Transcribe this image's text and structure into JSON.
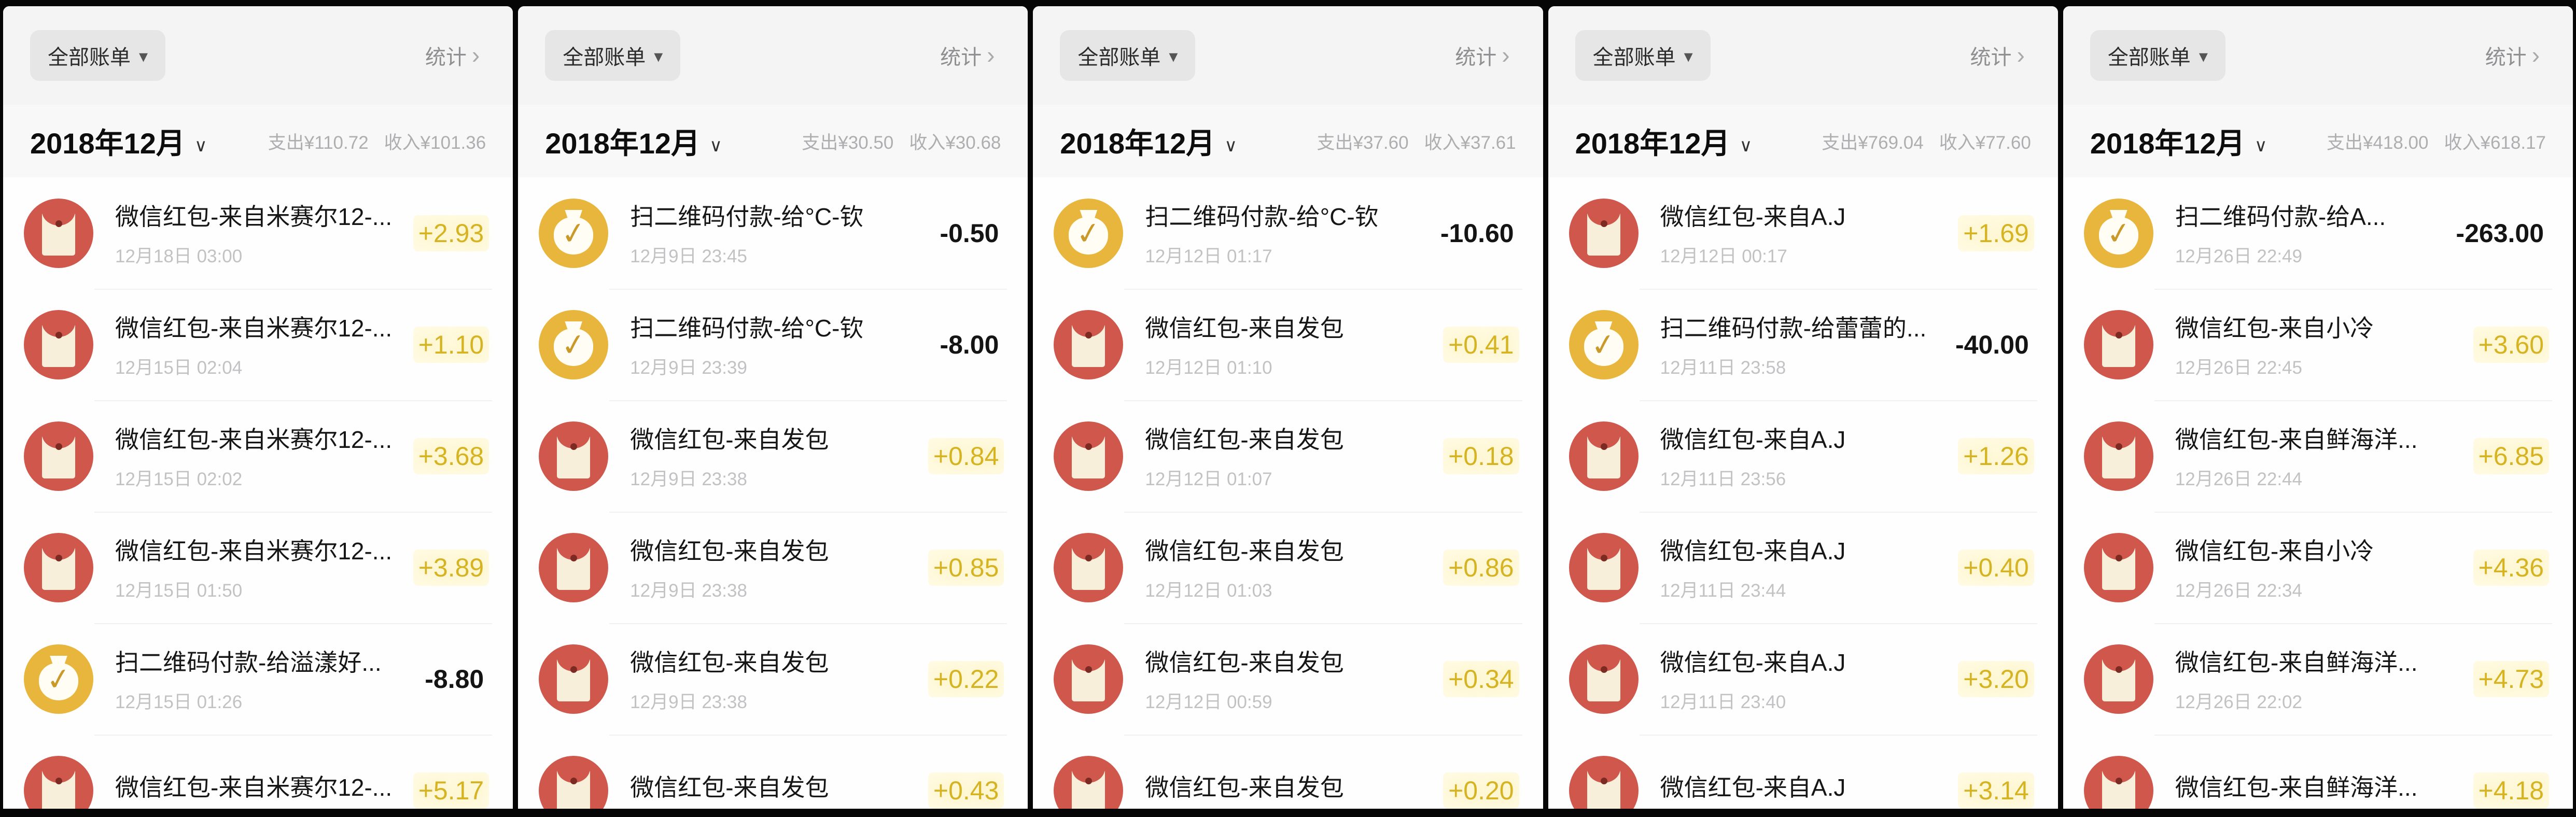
{
  "colors": {
    "red_packet_icon": "#d0574c",
    "money_bag_icon": "#e9b63d",
    "amount_positive": "#d5b322",
    "amount_negative": "#141414"
  },
  "panels": [
    {
      "filter_label": "全部账单",
      "stats_label": "统计",
      "month": "2018年12月",
      "expense": "支出¥110.72",
      "income": "收入¥101.36",
      "transactions": [
        {
          "icon": "red-packet-icon",
          "title": "微信红包-来自米赛尔12-...",
          "date": "12月18日 03:00",
          "amount": "+2.93"
        },
        {
          "icon": "red-packet-icon",
          "title": "微信红包-来自米赛尔12-...",
          "date": "12月15日 02:04",
          "amount": "+1.10"
        },
        {
          "icon": "red-packet-icon",
          "title": "微信红包-来自米赛尔12-...",
          "date": "12月15日 02:02",
          "amount": "+3.68"
        },
        {
          "icon": "red-packet-icon",
          "title": "微信红包-来自米赛尔12-...",
          "date": "12月15日 01:50",
          "amount": "+3.89"
        },
        {
          "icon": "money-bag-icon",
          "title": "扫二维码付款-给溢漾好...",
          "date": "12月15日 01:26",
          "amount": "-8.80"
        },
        {
          "icon": "red-packet-icon",
          "title": "微信红包-来自米赛尔12-...",
          "date": "",
          "amount": "+5.17"
        }
      ]
    },
    {
      "filter_label": "全部账单",
      "stats_label": "统计",
      "month": "2018年12月",
      "expense": "支出¥30.50",
      "income": "收入¥30.68",
      "transactions": [
        {
          "icon": "money-bag-icon",
          "title": "扫二维码付款-给°C-钦",
          "date": "12月9日 23:45",
          "amount": "-0.50"
        },
        {
          "icon": "money-bag-icon",
          "title": "扫二维码付款-给°C-钦",
          "date": "12月9日 23:39",
          "amount": "-8.00"
        },
        {
          "icon": "red-packet-icon",
          "title": "微信红包-来自发包",
          "date": "12月9日 23:38",
          "amount": "+0.84"
        },
        {
          "icon": "red-packet-icon",
          "title": "微信红包-来自发包",
          "date": "12月9日 23:38",
          "amount": "+0.85"
        },
        {
          "icon": "red-packet-icon",
          "title": "微信红包-来自发包",
          "date": "12月9日 23:38",
          "amount": "+0.22"
        },
        {
          "icon": "red-packet-icon",
          "title": "微信红包-来自发包",
          "date": "",
          "amount": "+0.43"
        }
      ]
    },
    {
      "filter_label": "全部账单",
      "stats_label": "统计",
      "month": "2018年12月",
      "expense": "支出¥37.60",
      "income": "收入¥37.61",
      "transactions": [
        {
          "icon": "money-bag-icon",
          "title": "扫二维码付款-给°C-钦",
          "date": "12月12日 01:17",
          "amount": "-10.60"
        },
        {
          "icon": "red-packet-icon",
          "title": "微信红包-来自发包",
          "date": "12月12日 01:10",
          "amount": "+0.41"
        },
        {
          "icon": "red-packet-icon",
          "title": "微信红包-来自发包",
          "date": "12月12日 01:07",
          "amount": "+0.18"
        },
        {
          "icon": "red-packet-icon",
          "title": "微信红包-来自发包",
          "date": "12月12日 01:03",
          "amount": "+0.86"
        },
        {
          "icon": "red-packet-icon",
          "title": "微信红包-来自发包",
          "date": "12月12日 00:59",
          "amount": "+0.34"
        },
        {
          "icon": "red-packet-icon",
          "title": "微信红包-来自发包",
          "date": "",
          "amount": "+0.20"
        }
      ]
    },
    {
      "filter_label": "全部账单",
      "stats_label": "统计",
      "month": "2018年12月",
      "expense": "支出¥769.04",
      "income": "收入¥77.60",
      "transactions": [
        {
          "icon": "red-packet-icon",
          "title": "微信红包-来自A.J",
          "date": "12月12日 00:17",
          "amount": "+1.69"
        },
        {
          "icon": "money-bag-icon",
          "title": "扫二维码付款-给蕾蕾的...",
          "date": "12月11日 23:58",
          "amount": "-40.00"
        },
        {
          "icon": "red-packet-icon",
          "title": "微信红包-来自A.J",
          "date": "12月11日 23:56",
          "amount": "+1.26"
        },
        {
          "icon": "red-packet-icon",
          "title": "微信红包-来自A.J",
          "date": "12月11日 23:44",
          "amount": "+0.40"
        },
        {
          "icon": "red-packet-icon",
          "title": "微信红包-来自A.J",
          "date": "12月11日 23:40",
          "amount": "+3.20"
        },
        {
          "icon": "red-packet-icon",
          "title": "微信红包-来自A.J",
          "date": "",
          "amount": "+3.14"
        }
      ]
    },
    {
      "filter_label": "全部账单",
      "stats_label": "统计",
      "month": "2018年12月",
      "expense": "支出¥418.00",
      "income": "收入¥618.17",
      "transactions": [
        {
          "icon": "money-bag-icon",
          "title": "扫二维码付款-给A...",
          "date": "12月26日 22:49",
          "amount": "-263.00"
        },
        {
          "icon": "red-packet-icon",
          "title": "微信红包-来自小冷",
          "date": "12月26日 22:45",
          "amount": "+3.60"
        },
        {
          "icon": "red-packet-icon",
          "title": "微信红包-来自鲜海洋...",
          "date": "12月26日 22:44",
          "amount": "+6.85"
        },
        {
          "icon": "red-packet-icon",
          "title": "微信红包-来自小冷",
          "date": "12月26日 22:34",
          "amount": "+4.36"
        },
        {
          "icon": "red-packet-icon",
          "title": "微信红包-来自鲜海洋...",
          "date": "12月26日 22:02",
          "amount": "+4.73"
        },
        {
          "icon": "red-packet-icon",
          "title": "微信红包-来自鲜海洋...",
          "date": "",
          "amount": "+4.18"
        }
      ]
    }
  ]
}
